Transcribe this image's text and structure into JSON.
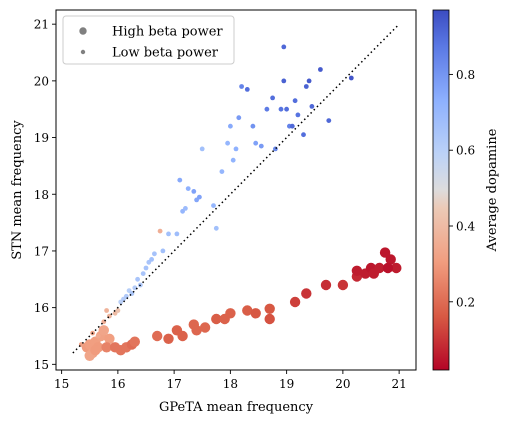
{
  "chart_data": {
    "type": "scatter",
    "xlabel": "GPeTA mean frequency",
    "ylabel": "STN mean frequency",
    "xlim": [
      14.9,
      21.3
    ],
    "ylim": [
      14.9,
      21.25
    ],
    "x_ticks": [
      15,
      16,
      17,
      18,
      19,
      20,
      21
    ],
    "y_ticks": [
      15,
      16,
      17,
      18,
      19,
      20,
      21
    ],
    "legend": {
      "placement": "top-left",
      "entries": [
        "High beta power",
        "Low beta power"
      ]
    },
    "colorbar": {
      "label": "Average dopamine",
      "range": [
        0.02,
        0.97
      ],
      "ticks": [
        0.2,
        0.4,
        0.6,
        0.8
      ],
      "colormap": "coolwarm"
    },
    "reference_line": {
      "style": "dotted",
      "color": "#000000",
      "from": [
        15.2,
        15.2
      ],
      "to": [
        21.0,
        21.0
      ]
    },
    "series": [
      {
        "name": "High beta power",
        "marker_size": "large",
        "points": [
          [
            15.45,
            15.3,
            0.3
          ],
          [
            15.5,
            15.35,
            0.31
          ],
          [
            15.55,
            15.2,
            0.32
          ],
          [
            15.6,
            15.4,
            0.31
          ],
          [
            15.5,
            15.15,
            0.33
          ],
          [
            15.65,
            15.3,
            0.3
          ],
          [
            15.7,
            15.5,
            0.32
          ],
          [
            15.75,
            15.6,
            0.33
          ],
          [
            15.85,
            15.45,
            0.31
          ],
          [
            15.6,
            15.25,
            0.3
          ],
          [
            15.8,
            15.3,
            0.25
          ],
          [
            15.95,
            15.3,
            0.22
          ],
          [
            16.05,
            15.25,
            0.22
          ],
          [
            16.15,
            15.3,
            0.22
          ],
          [
            16.25,
            15.35,
            0.2
          ],
          [
            16.3,
            15.4,
            0.22
          ],
          [
            16.7,
            15.5,
            0.2
          ],
          [
            16.9,
            15.45,
            0.18
          ],
          [
            17.05,
            15.6,
            0.18
          ],
          [
            17.15,
            15.5,
            0.18
          ],
          [
            17.35,
            15.7,
            0.19
          ],
          [
            17.4,
            15.6,
            0.19
          ],
          [
            17.55,
            15.65,
            0.19
          ],
          [
            17.75,
            15.8,
            0.17
          ],
          [
            17.9,
            15.8,
            0.18
          ],
          [
            18.0,
            15.9,
            0.18
          ],
          [
            18.3,
            15.95,
            0.17
          ],
          [
            18.45,
            15.9,
            0.16
          ],
          [
            18.7,
            15.98,
            0.16
          ],
          [
            18.7,
            15.8,
            0.15
          ],
          [
            19.15,
            16.1,
            0.12
          ],
          [
            19.35,
            16.25,
            0.1
          ],
          [
            19.7,
            16.4,
            0.09
          ],
          [
            20.0,
            16.4,
            0.1
          ],
          [
            20.25,
            16.55,
            0.08
          ],
          [
            20.25,
            16.65,
            0.06
          ],
          [
            20.4,
            16.6,
            0.06
          ],
          [
            20.5,
            16.7,
            0.05
          ],
          [
            20.55,
            16.6,
            0.06
          ],
          [
            20.65,
            16.7,
            0.06
          ],
          [
            20.75,
            16.97,
            0.05
          ],
          [
            20.85,
            16.85,
            0.05
          ],
          [
            20.95,
            16.7,
            0.06
          ],
          [
            20.8,
            16.7,
            0.04
          ]
        ]
      },
      {
        "name": "Low beta power",
        "marker_size": "small",
        "points": [
          [
            15.35,
            15.35,
            0.32
          ],
          [
            15.55,
            15.55,
            0.33
          ],
          [
            15.65,
            15.5,
            0.34
          ],
          [
            15.75,
            15.75,
            0.36
          ],
          [
            15.8,
            15.95,
            0.37
          ],
          [
            15.85,
            15.85,
            0.38
          ],
          [
            15.95,
            15.9,
            0.4
          ],
          [
            16.0,
            15.95,
            0.42
          ],
          [
            16.05,
            16.1,
            0.55
          ],
          [
            16.1,
            16.15,
            0.57
          ],
          [
            16.15,
            16.2,
            0.58
          ],
          [
            16.2,
            16.3,
            0.56
          ],
          [
            16.25,
            16.25,
            0.59
          ],
          [
            16.3,
            16.35,
            0.57
          ],
          [
            16.35,
            16.5,
            0.6
          ],
          [
            16.4,
            16.4,
            0.58
          ],
          [
            16.45,
            16.6,
            0.6
          ],
          [
            16.5,
            16.7,
            0.61
          ],
          [
            16.55,
            16.8,
            0.6
          ],
          [
            16.6,
            16.85,
            0.62
          ],
          [
            16.65,
            16.95,
            0.61
          ],
          [
            16.75,
            17.35,
            0.36
          ],
          [
            16.8,
            17.0,
            0.62
          ],
          [
            16.9,
            17.3,
            0.62
          ],
          [
            17.05,
            17.3,
            0.63
          ],
          [
            17.1,
            18.25,
            0.7
          ],
          [
            17.15,
            17.7,
            0.66
          ],
          [
            17.2,
            17.75,
            0.64
          ],
          [
            17.25,
            18.1,
            0.68
          ],
          [
            17.35,
            18.05,
            0.72
          ],
          [
            17.4,
            17.9,
            0.71
          ],
          [
            17.45,
            17.95,
            0.72
          ],
          [
            17.5,
            18.8,
            0.62
          ],
          [
            17.7,
            17.8,
            0.66
          ],
          [
            17.75,
            17.4,
            0.62
          ],
          [
            17.85,
            18.4,
            0.66
          ],
          [
            17.95,
            18.9,
            0.66
          ],
          [
            18.0,
            19.2,
            0.7
          ],
          [
            18.05,
            18.6,
            0.67
          ],
          [
            18.1,
            18.8,
            0.68
          ],
          [
            18.15,
            19.35,
            0.74
          ],
          [
            18.2,
            19.9,
            0.8
          ],
          [
            18.4,
            19.2,
            0.76
          ],
          [
            18.45,
            18.9,
            0.72
          ],
          [
            18.55,
            18.85,
            0.74
          ],
          [
            18.65,
            19.5,
            0.82
          ],
          [
            18.75,
            19.7,
            0.86
          ],
          [
            18.8,
            18.8,
            0.78
          ],
          [
            18.9,
            19.5,
            0.84
          ],
          [
            19.0,
            19.5,
            0.86
          ],
          [
            18.95,
            20.6,
            0.88
          ],
          [
            19.05,
            19.2,
            0.8
          ],
          [
            19.15,
            19.65,
            0.86
          ],
          [
            19.2,
            19.4,
            0.84
          ],
          [
            19.35,
            19.9,
            0.9
          ],
          [
            19.4,
            20.0,
            0.92
          ],
          [
            19.45,
            19.55,
            0.88
          ],
          [
            19.3,
            19.05,
            0.86
          ],
          [
            19.6,
            20.2,
            0.92
          ],
          [
            19.75,
            19.3,
            0.88
          ],
          [
            20.15,
            20.05,
            0.94
          ],
          [
            19.1,
            19.2,
            0.88
          ],
          [
            18.95,
            20.0,
            0.9
          ],
          [
            18.3,
            19.85,
            0.86
          ]
        ]
      }
    ]
  }
}
